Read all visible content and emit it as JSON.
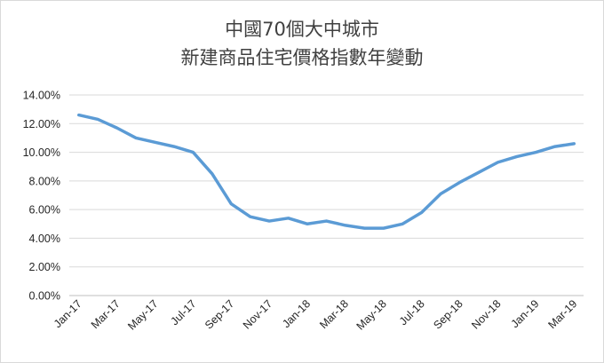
{
  "chart_data": {
    "type": "line",
    "title": "中國70個大中城市",
    "subtitle": "新建商品住宅價格指數年變動",
    "xlabel": "",
    "ylabel": "",
    "ylim": [
      0,
      14
    ],
    "y_ticks": [
      "0.00%",
      "2.00%",
      "4.00%",
      "6.00%",
      "8.00%",
      "10.00%",
      "12.00%",
      "14.00%"
    ],
    "y_tick_values": [
      0,
      2,
      4,
      6,
      8,
      10,
      12,
      14
    ],
    "x_tick_labels": [
      "Jan-17",
      "Mar-17",
      "May-17",
      "Jul-17",
      "Sep-17",
      "Nov-17",
      "Jan-18",
      "Mar-18",
      "May-18",
      "Jul-18",
      "Sep-18",
      "Nov-18",
      "Jan-19",
      "Mar-19"
    ],
    "categories": [
      "Jan-17",
      "Feb-17",
      "Mar-17",
      "Apr-17",
      "May-17",
      "Jun-17",
      "Jul-17",
      "Aug-17",
      "Sep-17",
      "Oct-17",
      "Nov-17",
      "Dec-17",
      "Jan-18",
      "Feb-18",
      "Mar-18",
      "Apr-18",
      "May-18",
      "Jun-18",
      "Jul-18",
      "Aug-18",
      "Sep-18",
      "Oct-18",
      "Nov-18",
      "Dec-18",
      "Jan-19",
      "Feb-19",
      "Mar-19"
    ],
    "series": [
      {
        "values": [
          12.6,
          12.3,
          11.7,
          11.0,
          10.7,
          10.4,
          10.0,
          8.5,
          6.4,
          5.5,
          5.2,
          5.4,
          5.0,
          5.2,
          4.9,
          4.7,
          4.7,
          5.0,
          5.8,
          7.1,
          7.9,
          8.6,
          9.3,
          9.7,
          10.0,
          10.4,
          10.6
        ],
        "color": "#5b9bd5"
      }
    ],
    "grid": true,
    "legend": "none"
  },
  "colors": {
    "series": "#5b9bd5",
    "grid": "#d9d9d9",
    "text": "#404040"
  }
}
